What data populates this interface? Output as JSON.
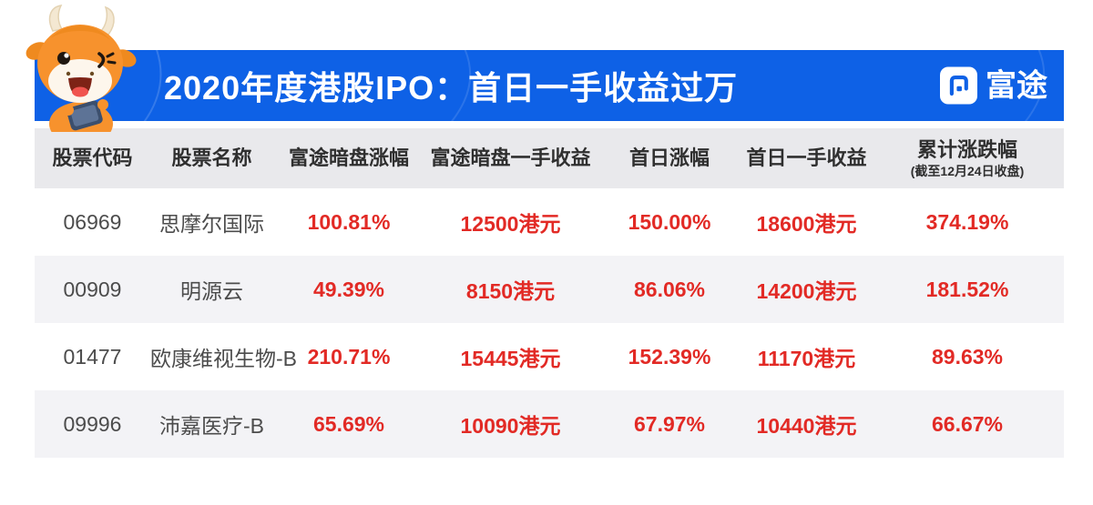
{
  "banner": {
    "title": "2020年度港股IPO：首日一手收益过万",
    "brand": "富途",
    "bg_color": "#0e61e6"
  },
  "colors": {
    "banner_blue": "#0e61e6",
    "header_gray": "#e9e9ec",
    "stripe_gray": "#f3f3f6",
    "value_red": "#e22a25",
    "text_dark": "#4c4c4c"
  },
  "table": {
    "columns": [
      {
        "key": "code",
        "label": "股票代码",
        "sublabel": ""
      },
      {
        "key": "name",
        "label": "股票名称",
        "sublabel": ""
      },
      {
        "key": "grey-market-gain",
        "label": "富途暗盘涨幅",
        "sublabel": ""
      },
      {
        "key": "grey-market-lot-profit",
        "label": "富途暗盘一手收益",
        "sublabel": ""
      },
      {
        "key": "first-day-gain",
        "label": "首日涨幅",
        "sublabel": ""
      },
      {
        "key": "first-day-lot-profit",
        "label": "首日一手收益",
        "sublabel": ""
      },
      {
        "key": "cumulative-change",
        "label": "累计涨跌幅",
        "sublabel": "(截至12月24日收盘)"
      }
    ],
    "rows": [
      [
        "06969",
        "思摩尔国际",
        "100.81%",
        "12500港元",
        "150.00%",
        "18600港元",
        "374.19%"
      ],
      [
        "00909",
        "明源云",
        "49.39%",
        "8150港元",
        "86.06%",
        "14200港元",
        "181.52%"
      ],
      [
        "01477",
        "欧康维视生物-B",
        "210.71%",
        "15445港元",
        "152.39%",
        "11170港元",
        "89.63%"
      ],
      [
        "09996",
        "沛嘉医疗-B",
        "65.69%",
        "10090港元",
        "67.97%",
        "10440港元",
        "66.67%"
      ]
    ]
  },
  "chart_data": {
    "type": "table",
    "title": "2020年度港股IPO：首日一手收益过万",
    "source_brand": "富途",
    "columns": [
      "股票代码",
      "股票名称",
      "富途暗盘涨幅",
      "富途暗盘一手收益",
      "首日涨幅",
      "首日一手收益",
      "累计涨跌幅(截至12月24日收盘)"
    ],
    "rows": [
      {
        "股票代码": "06969",
        "股票名称": "思摩尔国际",
        "富途暗盘涨幅": "100.81%",
        "富途暗盘一手收益": "12500港元",
        "首日涨幅": "150.00%",
        "首日一手收益": "18600港元",
        "累计涨跌幅": "374.19%"
      },
      {
        "股票代码": "00909",
        "股票名称": "明源云",
        "富途暗盘涨幅": "49.39%",
        "富途暗盘一手收益": "8150港元",
        "首日涨幅": "86.06%",
        "首日一手收益": "14200港元",
        "累计涨跌幅": "181.52%"
      },
      {
        "股票代码": "01477",
        "股票名称": "欧康维视生物-B",
        "富途暗盘涨幅": "210.71%",
        "富途暗盘一手收益": "15445港元",
        "首日涨幅": "152.39%",
        "首日一手收益": "11170港元",
        "累计涨跌幅": "89.63%"
      },
      {
        "股票代码": "09996",
        "股票名称": "沛嘉医疗-B",
        "富途暗盘涨幅": "65.69%",
        "富途暗盘一手收益": "10090港元",
        "首日涨幅": "67.97%",
        "首日一手收益": "10440港元",
        "累计涨跌幅": "66.67%"
      }
    ]
  }
}
